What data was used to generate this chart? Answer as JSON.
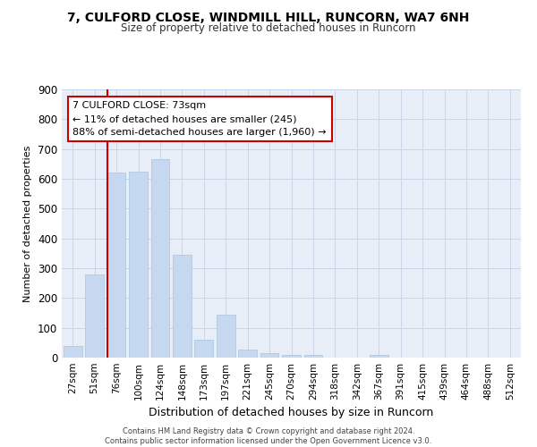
{
  "title1": "7, CULFORD CLOSE, WINDMILL HILL, RUNCORN, WA7 6NH",
  "title2": "Size of property relative to detached houses in Runcorn",
  "xlabel": "Distribution of detached houses by size in Runcorn",
  "ylabel": "Number of detached properties",
  "categories": [
    "27sqm",
    "51sqm",
    "76sqm",
    "100sqm",
    "124sqm",
    "148sqm",
    "173sqm",
    "197sqm",
    "221sqm",
    "245sqm",
    "270sqm",
    "294sqm",
    "318sqm",
    "342sqm",
    "367sqm",
    "391sqm",
    "415sqm",
    "439sqm",
    "464sqm",
    "488sqm",
    "512sqm"
  ],
  "values": [
    40,
    280,
    620,
    625,
    665,
    345,
    60,
    145,
    28,
    14,
    10,
    10,
    0,
    0,
    8,
    0,
    0,
    0,
    0,
    0,
    0
  ],
  "bar_color": "#c5d8f0",
  "bar_edge_color": "#a8c4e0",
  "vline_color": "#cc0000",
  "annotation_box_color": "#ffffff",
  "annotation_box_edge": "#cc0000",
  "annotation_line1": "7 CULFORD CLOSE: 73sqm",
  "annotation_line2": "← 11% of detached houses are smaller (245)",
  "annotation_line3": "88% of semi-detached houses are larger (1,960) →",
  "grid_color": "#ccd5e8",
  "background_color": "#e8eef8",
  "footer": "Contains HM Land Registry data © Crown copyright and database right 2024.\nContains public sector information licensed under the Open Government Licence v3.0.",
  "ylim": [
    0,
    900
  ],
  "yticks": [
    0,
    100,
    200,
    300,
    400,
    500,
    600,
    700,
    800,
    900
  ],
  "vline_index": 2
}
